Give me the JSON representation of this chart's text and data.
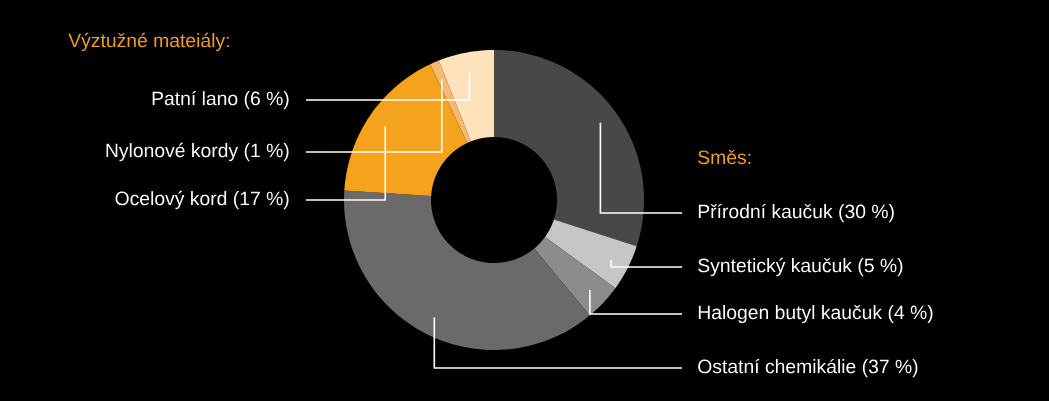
{
  "chart_data": {
    "type": "donut",
    "categories": [
      "Přírodní kaučuk",
      "Syntetický kaučuk",
      "Halogen butyl kaučuk",
      "Ostatní chemikálie",
      "Ocelový kord",
      "Nylonové kordy",
      "Patní lano"
    ],
    "values": [
      30,
      5,
      4,
      37,
      17,
      1,
      6
    ],
    "value_labels": [
      "(30 %)",
      "(5 %)",
      "(4 %)",
      "(37 %)",
      "(17 %)",
      "(1 %)",
      "(6 %)"
    ],
    "colors": [
      "#4a4846",
      "#c6c6c6",
      "#8c8c8c",
      "#6b6a69",
      "#f5a21c",
      "#f9b870",
      "#fde2bb"
    ],
    "annotations": [
      "Výztužné mateiály:",
      "Směs:"
    ]
  }
}
